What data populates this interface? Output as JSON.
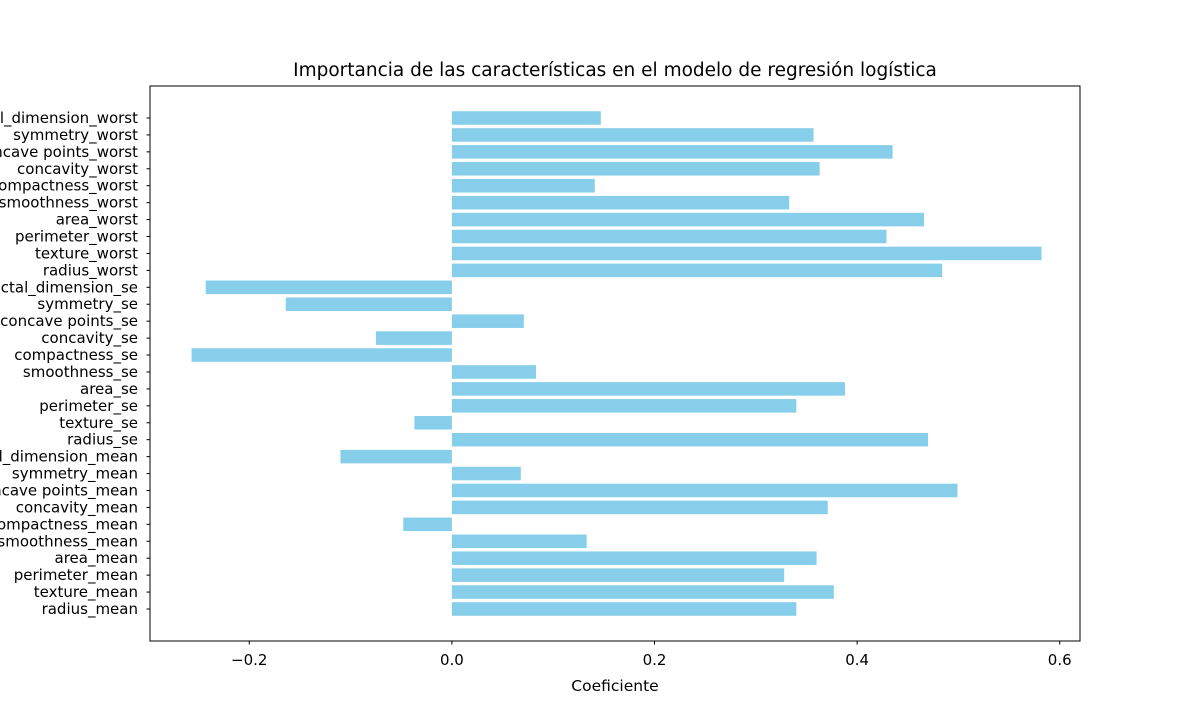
{
  "chart_data": {
    "type": "bar",
    "orientation": "horizontal",
    "title": "Importancia de las características en el modelo de regresión logística",
    "xlabel": "Coeficiente",
    "ylabel": "",
    "xlim": [
      -0.298,
      0.62
    ],
    "xticks": [
      -0.2,
      0.0,
      0.2,
      0.4,
      0.6
    ],
    "xtick_labels": [
      "−0.2",
      "0.0",
      "0.2",
      "0.4",
      "0.6"
    ],
    "grid": false,
    "bar_color": "#87ceeb",
    "categories": [
      "radius_mean",
      "texture_mean",
      "perimeter_mean",
      "area_mean",
      "smoothness_mean",
      "compactness_mean",
      "concavity_mean",
      "concave points_mean",
      "symmetry_mean",
      "fractal_dimension_mean",
      "radius_se",
      "texture_se",
      "perimeter_se",
      "area_se",
      "smoothness_se",
      "compactness_se",
      "concavity_se",
      "concave points_se",
      "symmetry_se",
      "fractal_dimension_se",
      "radius_worst",
      "texture_worst",
      "perimeter_worst",
      "area_worst",
      "smoothness_worst",
      "compactness_worst",
      "concavity_worst",
      "concave points_worst",
      "symmetry_worst",
      "fractal_dimension_worst"
    ],
    "values": [
      0.34,
      0.377,
      0.328,
      0.36,
      0.133,
      -0.048,
      0.371,
      0.499,
      0.068,
      -0.11,
      0.47,
      -0.037,
      0.34,
      0.388,
      0.083,
      -0.257,
      -0.075,
      0.071,
      -0.164,
      -0.243,
      0.484,
      0.582,
      0.429,
      0.466,
      0.333,
      0.141,
      0.363,
      0.435,
      0.357,
      0.147
    ]
  }
}
